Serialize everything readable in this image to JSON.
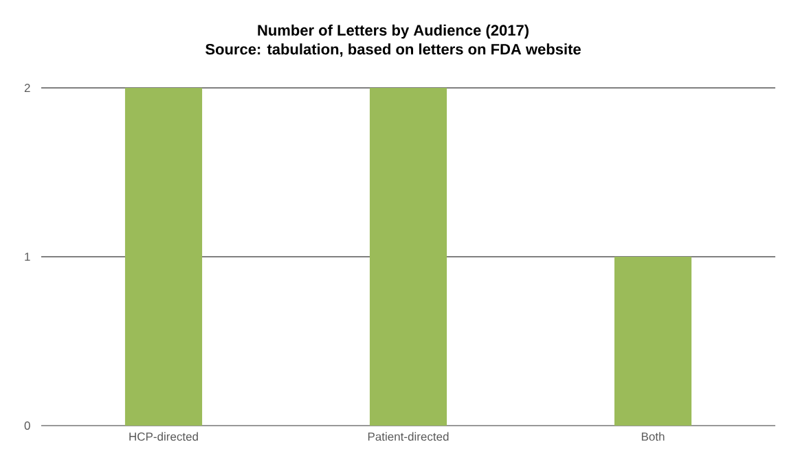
{
  "chart_data": {
    "type": "bar",
    "title": "Number of Letters by Audience (2017)",
    "subtitle": "Source: tabulation, based on letters on FDA website",
    "categories": [
      "HCP-directed",
      "Patient-directed",
      "Both"
    ],
    "values": [
      2,
      2,
      1
    ],
    "color": "#9bbb59",
    "ylim": [
      0,
      2
    ],
    "yticks": [
      0,
      1,
      2
    ],
    "grid": "y"
  }
}
